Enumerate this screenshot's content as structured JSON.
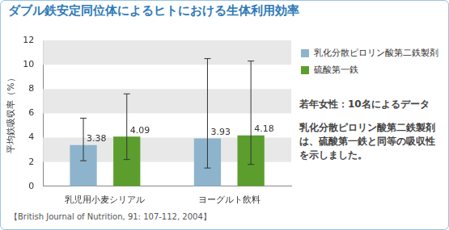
{
  "chart_data": {
    "type": "bar",
    "title": "ダブル鉄安定同位体によるヒトにおける生体利用効率",
    "y_label": "平均鉄吸収率（%）",
    "categories": [
      "乳児用小麦シリアル",
      "ヨーグルト飲料"
    ],
    "series": [
      {
        "name": "乳化分散ピロリン酸第二鉄製剤",
        "color": "#8db4cc",
        "values": [
          3.38,
          3.93
        ],
        "error_low": [
          2.1,
          1.5
        ],
        "error_high": [
          5.6,
          10.5
        ]
      },
      {
        "name": "硫酸第一鉄",
        "color": "#5c9e2e",
        "values": [
          4.09,
          4.18
        ],
        "error_low": [
          2.2,
          1.8
        ],
        "error_high": [
          7.6,
          10.3
        ]
      }
    ],
    "ylim": [
      0,
      12
    ],
    "yticks": [
      0,
      2,
      4,
      6,
      8,
      10,
      12
    ],
    "grid": true,
    "legend": "top right",
    "data_labels": true,
    "annotations": [
      "若年女性：10名によるデータ",
      "乳化分散ピロリン酸第二鉄製剤は、硫酸第一鉄と同等の吸収性を示しました。"
    ],
    "source": "【British Journal of Nutrition, 91: 107-112, 2004】"
  }
}
